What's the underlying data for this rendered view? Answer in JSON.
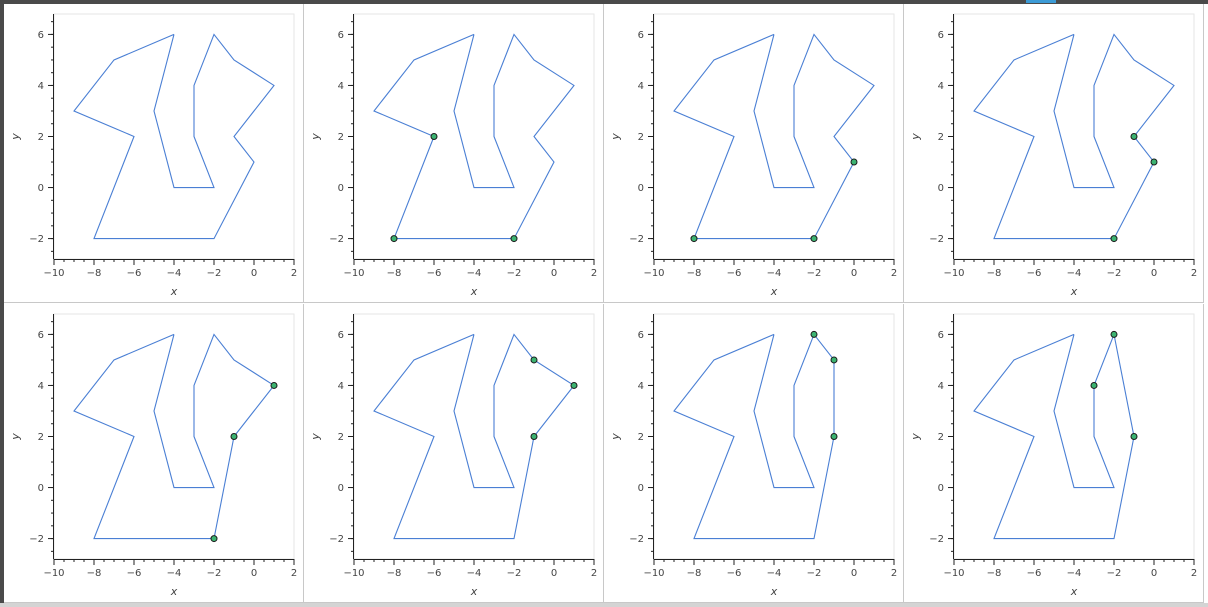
{
  "chart_data": {
    "type": "line",
    "layout": "grid-2x4",
    "xlabel": "x",
    "ylabel": "y",
    "xlim": [
      -10,
      2
    ],
    "ylim": [
      -2.8,
      6.8
    ],
    "x_ticks": [
      -10,
      -8,
      -6,
      -4,
      -2,
      0,
      2
    ],
    "y_ticks": [
      -2,
      0,
      2,
      4,
      6
    ],
    "line_color": "#4a7fd4",
    "marker_fill": "#3cb371",
    "polygon": [
      [
        -4,
        6
      ],
      [
        -7,
        5
      ],
      [
        -9,
        3
      ],
      [
        -6,
        2
      ],
      [
        -8,
        -2
      ],
      [
        -2,
        -2
      ],
      [
        0,
        1
      ],
      [
        -1,
        2
      ],
      [
        1,
        4
      ],
      [
        -1,
        5
      ],
      [
        -2,
        6
      ],
      [
        -3,
        4
      ],
      [
        -3,
        2
      ],
      [
        -2,
        0
      ],
      [
        -4,
        0
      ],
      [
        -5,
        3
      ],
      [
        -4,
        6
      ]
    ],
    "panels": [
      {
        "polygon": [
          [
            -4,
            6
          ],
          [
            -7,
            5
          ],
          [
            -9,
            3
          ],
          [
            -6,
            2
          ],
          [
            -8,
            -2
          ],
          [
            -2,
            -2
          ],
          [
            0,
            1
          ],
          [
            -1,
            2
          ],
          [
            1,
            4
          ],
          [
            -1,
            5
          ],
          [
            -2,
            6
          ],
          [
            -3,
            4
          ],
          [
            -3,
            2
          ],
          [
            -2,
            0
          ],
          [
            -4,
            0
          ],
          [
            -5,
            3
          ],
          [
            -4,
            6
          ]
        ],
        "highlight": []
      },
      {
        "polygon": [
          [
            -4,
            6
          ],
          [
            -7,
            5
          ],
          [
            -9,
            3
          ],
          [
            -6,
            2
          ],
          [
            -8,
            -2
          ],
          [
            -2,
            -2
          ],
          [
            0,
            1
          ],
          [
            -1,
            2
          ],
          [
            1,
            4
          ],
          [
            -1,
            5
          ],
          [
            -2,
            6
          ],
          [
            -3,
            4
          ],
          [
            -3,
            2
          ],
          [
            -2,
            0
          ],
          [
            -4,
            0
          ],
          [
            -5,
            3
          ],
          [
            -4,
            6
          ]
        ],
        "highlight": [
          [
            -6,
            2
          ],
          [
            -8,
            -2
          ],
          [
            -2,
            -2
          ]
        ]
      },
      {
        "polygon": [
          [
            -4,
            6
          ],
          [
            -7,
            5
          ],
          [
            -9,
            3
          ],
          [
            -6,
            2
          ],
          [
            -8,
            -2
          ],
          [
            -2,
            -2
          ],
          [
            0,
            1
          ],
          [
            -1,
            2
          ],
          [
            1,
            4
          ],
          [
            -1,
            5
          ],
          [
            -2,
            6
          ],
          [
            -3,
            4
          ],
          [
            -3,
            2
          ],
          [
            -2,
            0
          ],
          [
            -4,
            0
          ],
          [
            -5,
            3
          ],
          [
            -4,
            6
          ]
        ],
        "highlight": [
          [
            -8,
            -2
          ],
          [
            -2,
            -2
          ],
          [
            0,
            1
          ]
        ]
      },
      {
        "polygon": [
          [
            -4,
            6
          ],
          [
            -7,
            5
          ],
          [
            -9,
            3
          ],
          [
            -6,
            2
          ],
          [
            -8,
            -2
          ],
          [
            -2,
            -2
          ],
          [
            0,
            1
          ],
          [
            -1,
            2
          ],
          [
            1,
            4
          ],
          [
            -1,
            5
          ],
          [
            -2,
            6
          ],
          [
            -3,
            4
          ],
          [
            -3,
            2
          ],
          [
            -2,
            0
          ],
          [
            -4,
            0
          ],
          [
            -5,
            3
          ],
          [
            -4,
            6
          ]
        ],
        "highlight": [
          [
            -2,
            -2
          ],
          [
            0,
            1
          ],
          [
            -1,
            2
          ]
        ]
      },
      {
        "polygon": [
          [
            -4,
            6
          ],
          [
            -7,
            5
          ],
          [
            -9,
            3
          ],
          [
            -6,
            2
          ],
          [
            -8,
            -2
          ],
          [
            -2,
            -2
          ],
          [
            -1,
            2
          ],
          [
            1,
            4
          ],
          [
            -1,
            5
          ],
          [
            -2,
            6
          ],
          [
            -3,
            4
          ],
          [
            -3,
            2
          ],
          [
            -2,
            0
          ],
          [
            -4,
            0
          ],
          [
            -5,
            3
          ],
          [
            -4,
            6
          ]
        ],
        "highlight": [
          [
            -2,
            -2
          ],
          [
            -1,
            2
          ],
          [
            1,
            4
          ]
        ]
      },
      {
        "polygon": [
          [
            -4,
            6
          ],
          [
            -7,
            5
          ],
          [
            -9,
            3
          ],
          [
            -6,
            2
          ],
          [
            -8,
            -2
          ],
          [
            -2,
            -2
          ],
          [
            -1,
            2
          ],
          [
            1,
            4
          ],
          [
            -1,
            5
          ],
          [
            -2,
            6
          ],
          [
            -3,
            4
          ],
          [
            -3,
            2
          ],
          [
            -2,
            0
          ],
          [
            -4,
            0
          ],
          [
            -5,
            3
          ],
          [
            -4,
            6
          ]
        ],
        "highlight": [
          [
            -1,
            2
          ],
          [
            1,
            4
          ],
          [
            -1,
            5
          ]
        ]
      },
      {
        "polygon": [
          [
            -4,
            6
          ],
          [
            -7,
            5
          ],
          [
            -9,
            3
          ],
          [
            -6,
            2
          ],
          [
            -8,
            -2
          ],
          [
            -2,
            -2
          ],
          [
            -1,
            2
          ],
          [
            -1,
            5
          ],
          [
            -2,
            6
          ],
          [
            -3,
            4
          ],
          [
            -3,
            2
          ],
          [
            -2,
            0
          ],
          [
            -4,
            0
          ],
          [
            -5,
            3
          ],
          [
            -4,
            6
          ]
        ],
        "highlight": [
          [
            -1,
            2
          ],
          [
            -1,
            5
          ],
          [
            -2,
            6
          ]
        ]
      },
      {
        "polygon": [
          [
            -4,
            6
          ],
          [
            -7,
            5
          ],
          [
            -9,
            3
          ],
          [
            -6,
            2
          ],
          [
            -8,
            -2
          ],
          [
            -2,
            -2
          ],
          [
            -1,
            2
          ],
          [
            -2,
            6
          ],
          [
            -3,
            4
          ],
          [
            -3,
            2
          ],
          [
            -2,
            0
          ],
          [
            -4,
            0
          ],
          [
            -5,
            3
          ],
          [
            -4,
            6
          ]
        ],
        "highlight": [
          [
            -1,
            2
          ],
          [
            -2,
            6
          ],
          [
            -3,
            4
          ]
        ]
      }
    ]
  }
}
